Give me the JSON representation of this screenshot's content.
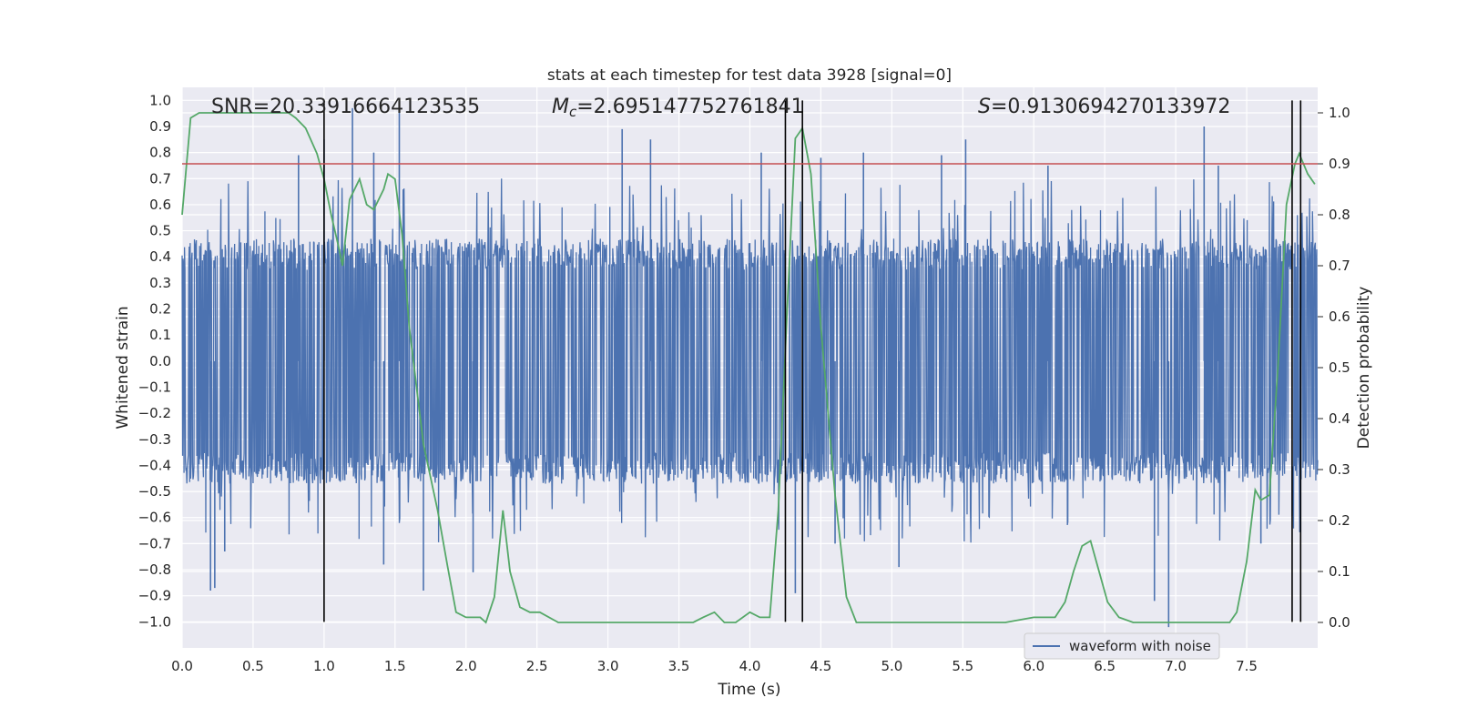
{
  "chart_data": {
    "type": "line",
    "title": "stats at each timestep for test data 3928 [signal=0]",
    "xlabel": "Time (s)",
    "ylabel": "Whitened strain",
    "y2label": "Detection probability",
    "xlim": [
      0.0,
      8.0
    ],
    "ylim": [
      -1.1,
      1.05
    ],
    "y2lim": [
      -0.05,
      1.05
    ],
    "x_ticks": [
      "0.0",
      "0.5",
      "1.0",
      "1.5",
      "2.0",
      "2.5",
      "3.0",
      "3.5",
      "4.0",
      "4.5",
      "5.0",
      "5.5",
      "6.0",
      "6.5",
      "7.0",
      "7.5"
    ],
    "y_ticks": [
      "1.0",
      "0.9",
      "0.8",
      "0.7",
      "0.6",
      "0.5",
      "0.4",
      "0.3",
      "0.2",
      "0.1",
      "0.0",
      "-0.1",
      "-0.2",
      "-0.3",
      "-0.4",
      "-0.5",
      "-0.6",
      "-0.7",
      "-0.8",
      "-0.9",
      "-1.0"
    ],
    "y2_ticks": [
      "1.0",
      "0.9",
      "0.8",
      "0.7",
      "0.6",
      "0.5",
      "0.4",
      "0.3",
      "0.2",
      "0.1",
      "0.0"
    ],
    "annotations": {
      "snr": "SNR=20.33916664123535",
      "mc_symbol": "M",
      "mc_sub": "c",
      "mc_value": "=2.695147752761841",
      "s_symbol": "S",
      "s_value": "=0.9130694270133972"
    },
    "legend": {
      "label": "waveform with noise",
      "placement": "lower-right"
    },
    "threshold": {
      "value": 0.9,
      "axis": "y2",
      "color": "#c44e52"
    },
    "vlines": [
      {
        "x": 1.0,
        "ymin": -1.0,
        "ymax": 1.0
      },
      {
        "x": 4.25,
        "ymin": -1.0,
        "ymax": 1.0
      },
      {
        "x": 4.37,
        "ymin": -1.0,
        "ymax": 1.0
      },
      {
        "x": 7.82,
        "ymin": -1.0,
        "ymax": 1.0
      },
      {
        "x": 7.88,
        "ymin": -1.0,
        "ymax": 1.0
      }
    ],
    "waveform": {
      "name": "waveform with noise",
      "color": "#4c72b0",
      "envelope": "dense whitened noise, typical amplitude about ±0.45 with spikes up to +0.97 and down to -1.02",
      "spikes_up": [
        [
          0.82,
          0.79
        ],
        [
          1.0,
          0.85
        ],
        [
          1.2,
          0.97
        ],
        [
          1.35,
          0.8
        ],
        [
          1.53,
          0.96
        ],
        [
          3.1,
          0.89
        ],
        [
          3.3,
          0.85
        ],
        [
          4.08,
          0.8
        ],
        [
          4.5,
          0.78
        ],
        [
          4.8,
          0.8
        ],
        [
          5.35,
          0.79
        ],
        [
          5.52,
          0.85
        ],
        [
          6.1,
          0.75
        ],
        [
          7.2,
          0.9
        ],
        [
          7.3,
          0.75
        ]
      ],
      "spikes_down": [
        [
          0.2,
          -0.88
        ],
        [
          0.23,
          -0.87
        ],
        [
          0.3,
          -0.73
        ],
        [
          1.42,
          -0.78
        ],
        [
          1.7,
          -0.88
        ],
        [
          2.05,
          -0.81
        ],
        [
          4.32,
          -0.89
        ],
        [
          4.6,
          -0.7
        ],
        [
          5.05,
          -0.79
        ],
        [
          6.85,
          -0.92
        ],
        [
          6.95,
          -1.02
        ],
        [
          7.6,
          -0.7
        ]
      ]
    },
    "series": [
      {
        "name": "detection probability",
        "axis": "y2",
        "color": "#55a868",
        "x": [
          0.0,
          0.06,
          0.12,
          0.25,
          0.4,
          0.6,
          0.75,
          0.8,
          0.87,
          0.95,
          1.0,
          1.05,
          1.1,
          1.13,
          1.18,
          1.25,
          1.3,
          1.35,
          1.42,
          1.45,
          1.5,
          1.55,
          1.6,
          1.7,
          1.8,
          1.87,
          1.93,
          2.0,
          2.1,
          2.14,
          2.2,
          2.26,
          2.31,
          2.38,
          2.45,
          2.52,
          2.65,
          2.9,
          3.2,
          3.5,
          3.6,
          3.67,
          3.75,
          3.82,
          3.9,
          4.0,
          4.07,
          4.14,
          4.2,
          4.26,
          4.32,
          4.37,
          4.43,
          4.5,
          4.6,
          4.68,
          4.75,
          4.9,
          5.2,
          5.5,
          5.8,
          6.0,
          6.15,
          6.22,
          6.28,
          6.34,
          6.4,
          6.46,
          6.52,
          6.6,
          6.7,
          6.9,
          7.1,
          7.2,
          7.3,
          7.38,
          7.43,
          7.5,
          7.56,
          7.6,
          7.66,
          7.72,
          7.78,
          7.84,
          7.87,
          7.93,
          7.98
        ],
        "values": [
          0.8,
          0.99,
          1.0,
          1.0,
          1.0,
          1.0,
          1.0,
          0.99,
          0.97,
          0.92,
          0.87,
          0.8,
          0.74,
          0.7,
          0.83,
          0.87,
          0.82,
          0.81,
          0.85,
          0.88,
          0.87,
          0.76,
          0.58,
          0.35,
          0.22,
          0.11,
          0.02,
          0.01,
          0.01,
          0.0,
          0.05,
          0.22,
          0.1,
          0.03,
          0.02,
          0.02,
          0.0,
          0.0,
          0.0,
          0.0,
          0.0,
          0.01,
          0.02,
          0.0,
          0.0,
          0.02,
          0.01,
          0.01,
          0.22,
          0.6,
          0.95,
          0.97,
          0.88,
          0.58,
          0.25,
          0.05,
          0.0,
          0.0,
          0.0,
          0.0,
          0.0,
          0.01,
          0.01,
          0.04,
          0.1,
          0.15,
          0.16,
          0.1,
          0.04,
          0.01,
          0.0,
          0.0,
          0.0,
          0.0,
          0.0,
          0.0,
          0.02,
          0.12,
          0.26,
          0.24,
          0.25,
          0.5,
          0.82,
          0.9,
          0.92,
          0.88,
          0.86
        ]
      }
    ]
  }
}
